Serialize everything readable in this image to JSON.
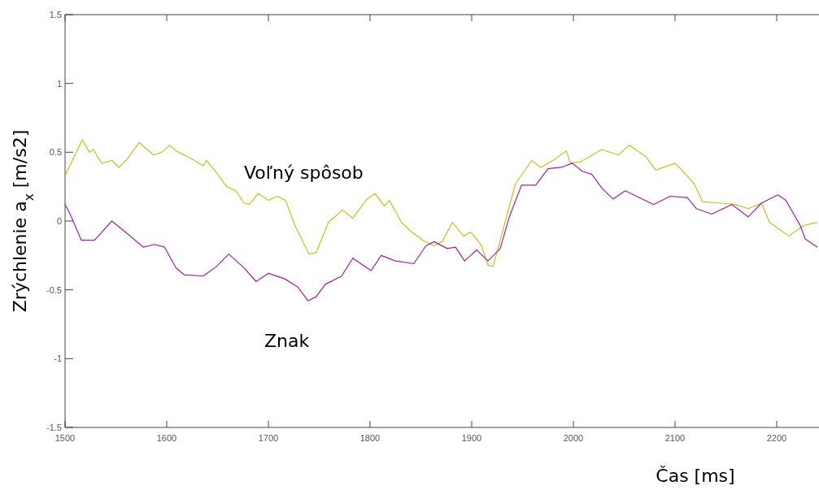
{
  "chart_data": {
    "type": "line",
    "xlabel": "Čas [ms]",
    "ylabel": "Zrýchlenie a$_{x}$ [m/s2]",
    "xlim": [
      1500,
      2240
    ],
    "ylim": [
      -1.5,
      1.5
    ],
    "xticks": [
      1500,
      1600,
      1700,
      1800,
      1900,
      2000,
      2100,
      2200
    ],
    "yticks": [
      -1.5,
      -1,
      -0.5,
      0,
      0.5,
      1,
      1.5
    ],
    "grid": false,
    "marker": "none",
    "line_style": "solid",
    "series": [
      {
        "name": "Voľný spôsob",
        "color": "#c8c020",
        "x": [
          1500,
          1517,
          1524,
          1528,
          1536,
          1546,
          1553,
          1561,
          1573,
          1587,
          1595,
          1603,
          1609,
          1625,
          1636,
          1639,
          1649,
          1659,
          1668,
          1676,
          1681,
          1690,
          1700,
          1709,
          1717,
          1726,
          1740,
          1747,
          1759,
          1773,
          1783,
          1797,
          1805,
          1814,
          1819,
          1831,
          1841,
          1852,
          1863,
          1871,
          1881,
          1892,
          1899,
          1909,
          1916,
          1921,
          1932,
          1943,
          1959,
          1968,
          1980,
          1993,
          1997,
          2007,
          2028,
          2044,
          2055,
          2071,
          2081,
          2100,
          2108,
          2119,
          2127,
          2145,
          2159,
          2172,
          2185,
          2193,
          2212,
          2223,
          2228,
          2240
        ],
        "values": [
          0.33,
          0.59,
          0.5,
          0.52,
          0.42,
          0.44,
          0.39,
          0.45,
          0.57,
          0.48,
          0.5,
          0.55,
          0.51,
          0.45,
          0.4,
          0.44,
          0.35,
          0.25,
          0.22,
          0.13,
          0.12,
          0.2,
          0.15,
          0.18,
          0.15,
          -0.03,
          -0.24,
          -0.23,
          -0.01,
          0.08,
          0.02,
          0.16,
          0.2,
          0.11,
          0.15,
          -0.01,
          -0.08,
          -0.14,
          -0.18,
          -0.15,
          -0.01,
          -0.11,
          -0.08,
          -0.17,
          -0.32,
          -0.33,
          -0.03,
          0.27,
          0.44,
          0.39,
          0.44,
          0.51,
          0.42,
          0.43,
          0.52,
          0.48,
          0.55,
          0.47,
          0.37,
          0.42,
          0.36,
          0.27,
          0.14,
          0.13,
          0.12,
          0.09,
          0.13,
          -0.01,
          -0.11,
          -0.05,
          -0.03,
          -0.01
        ]
      },
      {
        "name": "Znak",
        "color": "#a020a0",
        "x": [
          1500,
          1505,
          1516,
          1529,
          1546,
          1561,
          1577,
          1588,
          1598,
          1609,
          1617,
          1636,
          1649,
          1661,
          1676,
          1688,
          1700,
          1716,
          1729,
          1739,
          1747,
          1756,
          1772,
          1783,
          1801,
          1811,
          1825,
          1843,
          1855,
          1863,
          1876,
          1884,
          1893,
          1905,
          1916,
          1928,
          1937,
          1949,
          1963,
          1975,
          1988,
          1999,
          2009,
          2018,
          2028,
          2039,
          2051,
          2065,
          2079,
          2095,
          2112,
          2121,
          2136,
          2156,
          2172,
          2185,
          2201,
          2209,
          2223,
          2228,
          2240
        ],
        "values": [
          0.12,
          0.05,
          -0.14,
          -0.14,
          0,
          -0.09,
          -0.19,
          -0.17,
          -0.19,
          -0.34,
          -0.39,
          -0.4,
          -0.33,
          -0.24,
          -0.34,
          -0.44,
          -0.38,
          -0.42,
          -0.48,
          -0.58,
          -0.55,
          -0.46,
          -0.4,
          -0.27,
          -0.36,
          -0.25,
          -0.29,
          -0.31,
          -0.18,
          -0.15,
          -0.2,
          -0.19,
          -0.29,
          -0.21,
          -0.29,
          -0.2,
          0.03,
          0.26,
          0.26,
          0.38,
          0.39,
          0.42,
          0.36,
          0.34,
          0.24,
          0.16,
          0.22,
          0.17,
          0.12,
          0.18,
          0.17,
          0.09,
          0.05,
          0.12,
          0.03,
          0.13,
          0.19,
          0.15,
          -0.03,
          -0.13,
          -0.19
        ]
      }
    ]
  }
}
